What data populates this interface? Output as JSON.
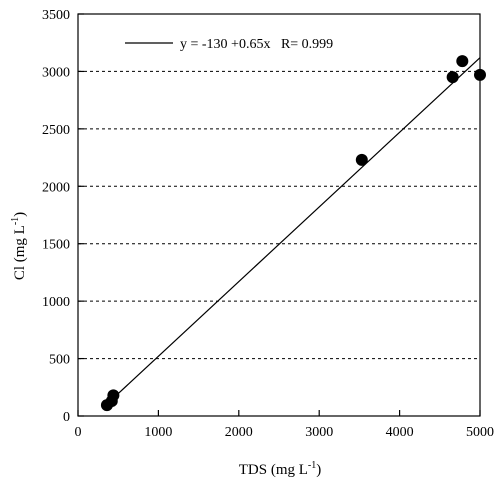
{
  "chart_data": {
    "type": "scatter",
    "title": "",
    "xlabel": "TDS (mg L",
    "xlabel_sup": "-1",
    "xlabel_tail": ")",
    "ylabel": "Cl (mg L",
    "ylabel_sup": "-1",
    "ylabel_tail": ")",
    "xlim": [
      0,
      5000
    ],
    "ylim": [
      0,
      3500
    ],
    "xticks": [
      0,
      1000,
      2000,
      3000,
      4000,
      5000
    ],
    "yticks": [
      0,
      500,
      1000,
      1500,
      2000,
      2500,
      3000,
      3500
    ],
    "grid": "horizontal dashed",
    "series": [
      {
        "marker": "filled-circle",
        "color": "#000000",
        "points": [
          {
            "x": 360,
            "y": 95
          },
          {
            "x": 420,
            "y": 130
          },
          {
            "x": 440,
            "y": 180
          },
          {
            "x": 3530,
            "y": 2230
          },
          {
            "x": 4660,
            "y": 2950
          },
          {
            "x": 4780,
            "y": 3090
          },
          {
            "x": 5000,
            "y": 2970
          }
        ]
      }
    ],
    "fit_line": {
      "intercept": -130,
      "slope": 0.65,
      "x_range": [
        430,
        5000
      ]
    },
    "legend": {
      "position": "top-left",
      "text": "y = -130 +0.65x   R= 0.999"
    }
  }
}
